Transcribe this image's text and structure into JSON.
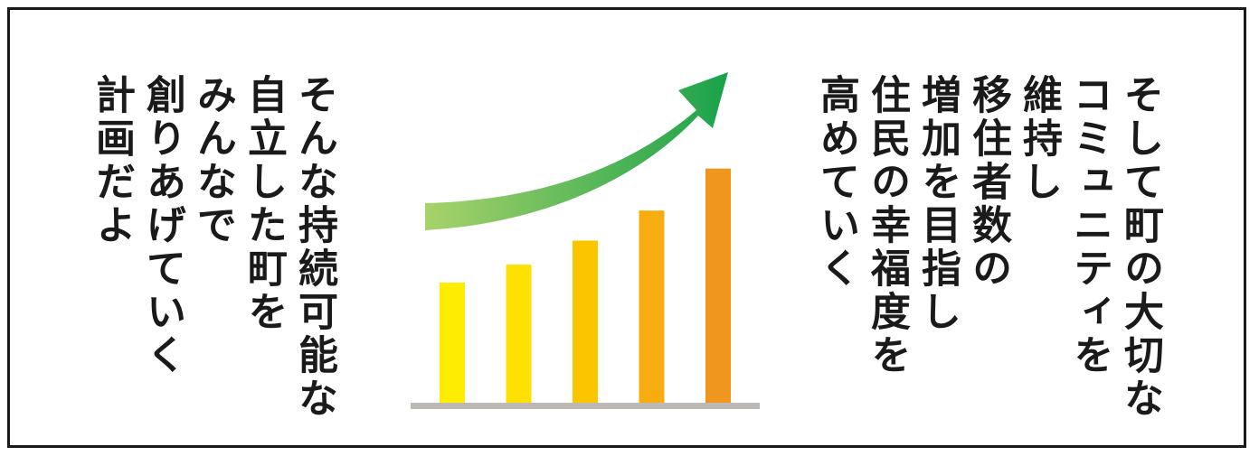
{
  "right_text": [
    "そして町の大切な",
    "コミュニティを",
    "維持し",
    "移住者数の",
    "増加を目指し",
    "住民の幸福度を",
    "高めていく"
  ],
  "left_text": [
    "そんな持続可能な",
    "自立した町を",
    "みんなで",
    "創りあげていく",
    "計画だよ"
  ],
  "illustration": {
    "bars": [
      {
        "value": 1.0,
        "color": "#FFED00"
      },
      {
        "value": 1.15,
        "color": "#FFE000"
      },
      {
        "value": 1.35,
        "color": "#FBC600"
      },
      {
        "value": 1.6,
        "color": "#F7AC10"
      },
      {
        "value": 1.95,
        "color": "#F0961E"
      }
    ],
    "baseline_color": "#BDB9B4",
    "arrow_colors": [
      "#A8D26A",
      "#1AA24A"
    ]
  }
}
